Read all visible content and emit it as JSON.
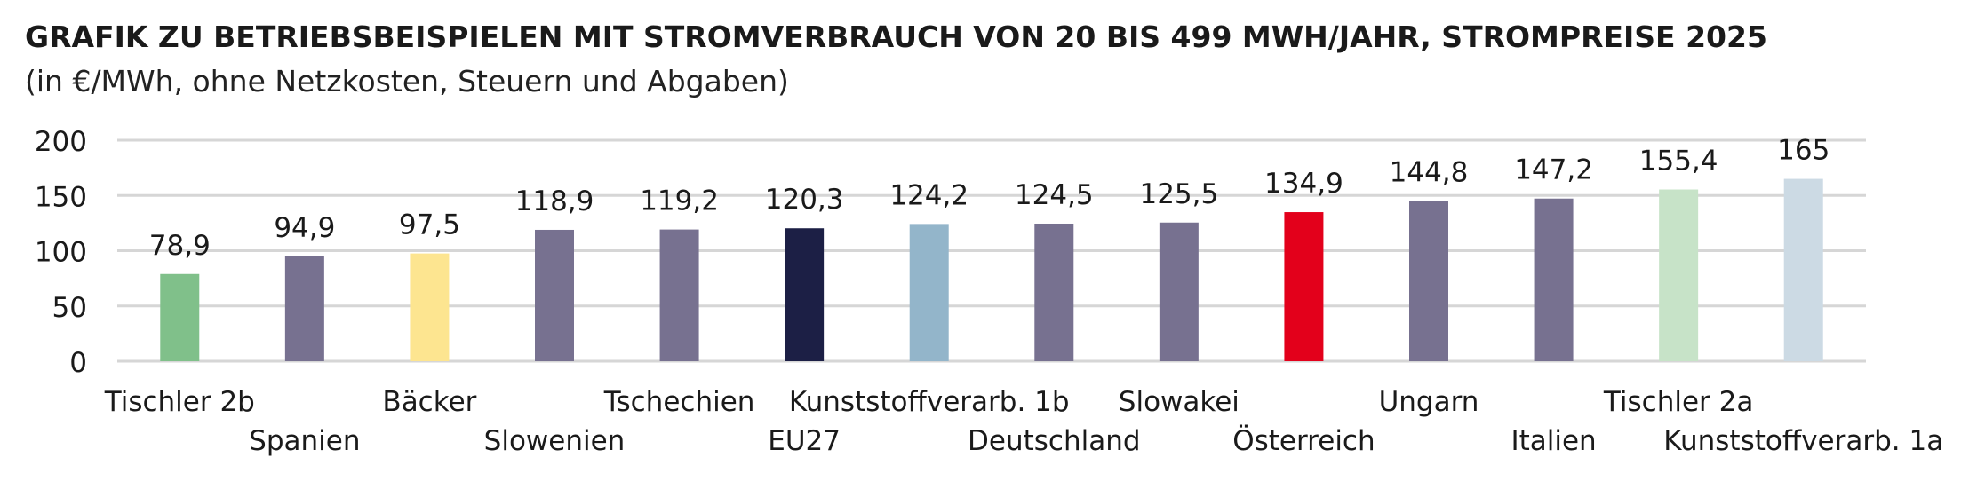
{
  "title": "GRAFIK ZU BETRIEBSBEISPIELEN MIT STROMVERBRAUCH VON 20 BIS 499 MWH/JAHR, STROMPREISE 2025",
  "subtitle": "(in €/MWh, ohne Netzkosten, Steuern und Abgaben)",
  "chart_data": {
    "type": "bar",
    "title": "GRAFIK ZU BETRIEBSBEISPIELEN MIT STROMVERBRAUCH VON 20 BIS 499 MWH/JAHR, STROMPREISE 2025",
    "subtitle": "(in €/MWh, ohne Netzkosten, Steuern und Abgaben)",
    "categories": [
      "Tischler 2b",
      "Spanien",
      "Bäcker",
      "Slowenien",
      "Tschechien",
      "EU27",
      "Kunststoffverarb. 1b",
      "Deutschland",
      "Slowakei",
      "Österreich",
      "Ungarn",
      "Italien",
      "Tischler 2a",
      "Kunststoffverarb. 1a"
    ],
    "values": [
      78.9,
      94.9,
      97.5,
      118.9,
      119.2,
      120.3,
      124.2,
      124.5,
      125.5,
      134.9,
      144.8,
      147.2,
      155.4,
      165
    ],
    "value_labels": [
      "78,9",
      "94,9",
      "97,5",
      "118,9",
      "119,2",
      "120,3",
      "124,2",
      "124,5",
      "125,5",
      "134,9",
      "144,8",
      "147,2",
      "155,4",
      "165"
    ],
    "colors": [
      "#80c08a",
      "#777190",
      "#fde590",
      "#777190",
      "#777190",
      "#1c1f45",
      "#93b5ca",
      "#777190",
      "#777190",
      "#e3001b",
      "#777190",
      "#777190",
      "#c7e3c8",
      "#ccdae4"
    ],
    "xlabel": "",
    "ylabel": "",
    "ylim": [
      0,
      200
    ],
    "yticks": [
      "0",
      "50",
      "100",
      "150",
      "200"
    ],
    "grid": true,
    "legend": "none"
  }
}
